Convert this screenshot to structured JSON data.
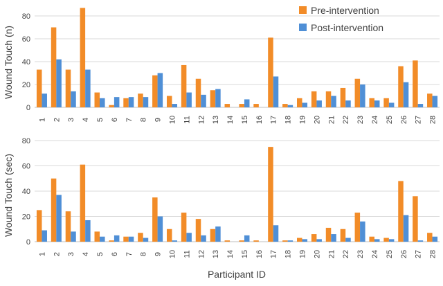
{
  "colors": {
    "pre": "#F28C28",
    "post": "#4F8FD6"
  },
  "shared_xlabel": "Participant ID",
  "chart_data": [
    {
      "type": "bar",
      "ylabel": "Wound Touch (n)",
      "ylim": [
        0,
        80
      ],
      "yticks": [
        0,
        20,
        40,
        60,
        80
      ],
      "grid": true,
      "legend_position": "top-right",
      "categories": [
        "1",
        "2",
        "3",
        "4",
        "5",
        "6",
        "7",
        "8",
        "9",
        "10",
        "11",
        "12",
        "13",
        "14",
        "15",
        "16",
        "17",
        "18",
        "19",
        "20",
        "21",
        "22",
        "23",
        "24",
        "25",
        "26",
        "27",
        "28"
      ],
      "series": [
        {
          "name": "Pre-intervention",
          "values": [
            33,
            70,
            33,
            87,
            13,
            2,
            8,
            12,
            28,
            10,
            37,
            25,
            15,
            3,
            3,
            3,
            61,
            3,
            8,
            14,
            14,
            17,
            25,
            8,
            8,
            36,
            41,
            12
          ]
        },
        {
          "name": "Post-intervention",
          "values": [
            12,
            42,
            14,
            33,
            8,
            9,
            9,
            9,
            30,
            3,
            13,
            11,
            16,
            0,
            7,
            0,
            27,
            2,
            4,
            6,
            10,
            6,
            20,
            6,
            4,
            22,
            3,
            10
          ]
        }
      ]
    },
    {
      "type": "bar",
      "ylabel": "Wound Touch (sec)",
      "ylim": [
        0,
        80
      ],
      "yticks": [
        0,
        20,
        40,
        60,
        80
      ],
      "grid": true,
      "categories": [
        "1",
        "2",
        "3",
        "4",
        "5",
        "6",
        "7",
        "8",
        "9",
        "10",
        "11",
        "12",
        "13",
        "14",
        "15",
        "16",
        "17",
        "18",
        "19",
        "20",
        "21",
        "22",
        "23",
        "24",
        "25",
        "26",
        "27",
        "28"
      ],
      "series": [
        {
          "name": "Pre-intervention",
          "values": [
            25,
            50,
            24,
            61,
            8,
            1,
            4,
            7,
            35,
            10,
            23,
            18,
            10,
            1,
            1,
            1,
            75,
            1,
            3,
            6,
            11,
            10,
            23,
            4,
            3,
            48,
            36,
            7
          ]
        },
        {
          "name": "Post-intervention",
          "values": [
            9,
            37,
            8,
            17,
            4,
            5,
            4,
            3,
            20,
            1,
            7,
            5,
            12,
            0,
            5,
            0,
            13,
            1,
            2,
            2,
            6,
            3,
            16,
            2,
            2,
            21,
            1,
            4
          ]
        }
      ]
    }
  ]
}
